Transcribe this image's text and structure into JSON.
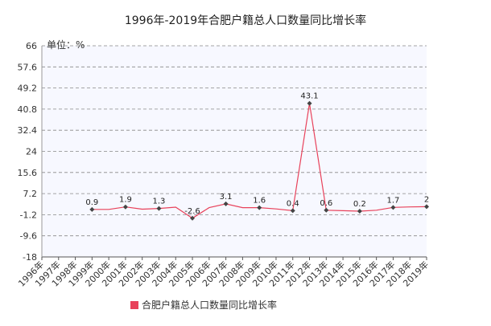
{
  "chart_data": {
    "type": "line",
    "title": "1996年-2019年合肥户籍总人口数量同比增长率",
    "unit_label": "单位：%",
    "x": [
      "1996年",
      "1997年",
      "1998年",
      "1999年",
      "2000年",
      "2001年",
      "2002年",
      "2003年",
      "2004年",
      "2005年",
      "2006年",
      "2007年",
      "2008年",
      "2009年",
      "2010年",
      "2011年",
      "2012年",
      "2013年",
      "2014年",
      "2015年",
      "2016年",
      "2017年",
      "2018年",
      "2019年"
    ],
    "series": [
      {
        "name": "合肥户籍总人口数量同比增长率",
        "color": "#e8415a",
        "values": [
          null,
          null,
          null,
          0.9,
          0.9,
          1.9,
          1.0,
          1.3,
          1.8,
          -2.6,
          1.6,
          3.1,
          1.6,
          1.6,
          1.1,
          0.4,
          43.1,
          0.6,
          0.4,
          0.2,
          0.6,
          1.7,
          1.9,
          2
        ],
        "labels": [
          null,
          null,
          null,
          "0.9",
          null,
          "1.9",
          null,
          "1.3",
          null,
          "-2.6",
          null,
          "3.1",
          null,
          "1.6",
          null,
          "0.4",
          "43.1",
          "0.6",
          null,
          "0.2",
          null,
          "1.7",
          null,
          "2"
        ]
      }
    ],
    "yticks": [
      "66",
      "57.6",
      "49.2",
      "40.8",
      "32.4",
      "24",
      "15.6",
      "7.2",
      "-1.2",
      "-9.6",
      "-18"
    ],
    "ylim": [
      -18,
      66
    ],
    "grid": true,
    "legend_position": "bottom"
  }
}
